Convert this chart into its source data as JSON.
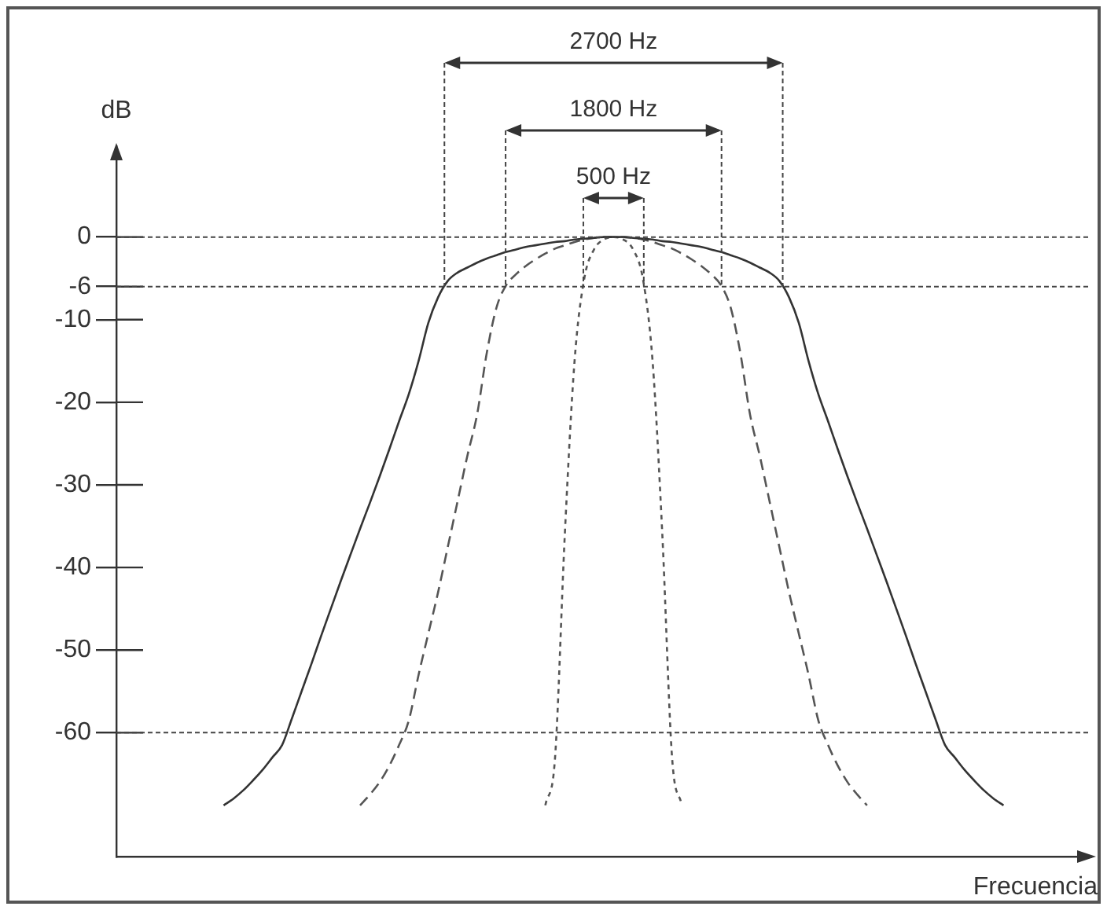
{
  "chart_data": {
    "type": "line",
    "xlabel": "Frecuencia",
    "ylabel": "dB",
    "categories": [
      null,
      null,
      null,
      null,
      null,
      null,
      null,
      null,
      null,
      null,
      null,
      null,
      null,
      null,
      null,
      null,
      null,
      null,
      null,
      null,
      null,
      null,
      null,
      null,
      null,
      null,
      null,
      null,
      null,
      null,
      null,
      null,
      null,
      null,
      null,
      null,
      null,
      null,
      null,
      null,
      null,
      null,
      null,
      null,
      null,
      null,
      null,
      null,
      null,
      null,
      null,
      null,
      null,
      null,
      null,
      null,
      null,
      null,
      null,
      null,
      null,
      null,
      null,
      null,
      null,
      null,
      null,
      null,
      null,
      null,
      null,
      null,
      null,
      null,
      null,
      null,
      null,
      null,
      null,
      null,
      null,
      null,
      null,
      null,
      null,
      null,
      null,
      null,
      null,
      null,
      null,
      null,
      null,
      null,
      null,
      null,
      null,
      null,
      null,
      null,
      null
    ],
    "series": [
      {
        "color": "#333333",
        "line_style": "solid",
        "values": [
          null,
          null,
          null,
          null,
          null,
          null,
          null,
          null,
          null,
          null,
          null,
          -68.8,
          -68,
          -67,
          -65.8,
          -64.5,
          -63,
          -61.5,
          -58.3,
          -55,
          -51.7,
          -48.3,
          -45,
          -41.7,
          -38.5,
          -35.3,
          -32.2,
          -29,
          -25.7,
          -22.3,
          -19,
          -15,
          -10.4,
          -7.3,
          -5.3,
          -4.3,
          -3.7,
          -3.1,
          -2.6,
          -2.2,
          -1.8,
          -1.5,
          -1.2,
          -1,
          -0.8,
          -0.6,
          -0.5,
          -0.3,
          -0.2,
          -0.1,
          0,
          0,
          0,
          -0.1,
          -0.2,
          -0.3,
          -0.5,
          -0.6,
          -0.8,
          -1,
          -1.2,
          -1.5,
          -1.8,
          -2.2,
          -2.6,
          -3.1,
          -3.7,
          -4.3,
          -5.3,
          -7.3,
          -10.4,
          -15,
          -19,
          -22.3,
          -25.7,
          -29,
          -32.2,
          -35.3,
          -38.5,
          -41.7,
          -45,
          -48.3,
          -51.7,
          -55,
          -58.3,
          -61.5,
          -63,
          -64.5,
          -65.8,
          -67,
          -68,
          -68.8,
          null,
          null,
          null,
          null,
          null,
          null,
          null,
          null,
          null
        ]
      },
      {
        "color": "#555555",
        "line_style": "dashed",
        "values": [
          null,
          null,
          null,
          null,
          null,
          null,
          null,
          null,
          null,
          null,
          null,
          null,
          null,
          null,
          null,
          null,
          null,
          null,
          null,
          null,
          null,
          null,
          null,
          null,
          null,
          -68.8,
          -67.5,
          -66,
          -64,
          -61.5,
          -58.5,
          -53,
          -48,
          -43,
          -37.5,
          -32,
          -26.5,
          -21.5,
          -14,
          -8.5,
          -5.8,
          -4.5,
          -3.5,
          -2.7,
          -2,
          -1.4,
          -1,
          -0.6,
          -0.3,
          -0.1,
          0,
          0,
          0,
          -0.1,
          -0.3,
          -0.6,
          -1,
          -1.4,
          -2,
          -2.7,
          -3.5,
          -4.5,
          -5.8,
          -8.5,
          -14,
          -21.5,
          -26.5,
          -32,
          -37.5,
          -43,
          -48,
          -53,
          -58.5,
          -61.5,
          -64,
          -66,
          -67.5,
          -68.8,
          null,
          null,
          null,
          null,
          null,
          null,
          null,
          null,
          null,
          null,
          null,
          null,
          null,
          null,
          null,
          null,
          null,
          null,
          null,
          null,
          null,
          null,
          null
        ]
      },
      {
        "color": "#555555",
        "line_style": "dotted",
        "values": [
          null,
          null,
          null,
          null,
          null,
          null,
          null,
          null,
          null,
          null,
          null,
          null,
          null,
          null,
          null,
          null,
          null,
          null,
          null,
          null,
          null,
          null,
          null,
          null,
          null,
          null,
          null,
          null,
          null,
          null,
          null,
          null,
          null,
          null,
          null,
          null,
          null,
          null,
          null,
          null,
          null,
          null,
          null,
          null,
          -68.8,
          -63,
          -36,
          -15,
          -5,
          -1.5,
          -0.3,
          0,
          -0.3,
          -1.5,
          -5,
          -15,
          -36,
          -63,
          -68.8,
          null,
          null,
          null,
          null,
          null,
          null,
          null,
          null,
          null,
          null,
          null,
          null,
          null,
          null,
          null,
          null,
          null,
          null,
          null,
          null,
          null,
          null,
          null,
          null,
          null,
          null,
          null,
          null,
          null,
          null,
          null,
          null,
          null,
          null,
          null,
          null,
          null,
          null,
          null,
          null,
          null,
          null
        ]
      }
    ],
    "ylim": [
      -75,
      11
    ],
    "yticks": [
      0,
      -6,
      -10,
      -20,
      -30,
      -40,
      -50,
      -60
    ],
    "ref_lines": [
      {
        "axis": "y",
        "value": 0
      },
      {
        "axis": "y",
        "value": -6
      },
      {
        "axis": "y",
        "value": -60
      }
    ],
    "annotations": [
      "2700 Hz",
      "1800 Hz",
      "500 Hz"
    ],
    "tick_labels": "y",
    "grid": false,
    "legend": false,
    "marker": "none"
  }
}
